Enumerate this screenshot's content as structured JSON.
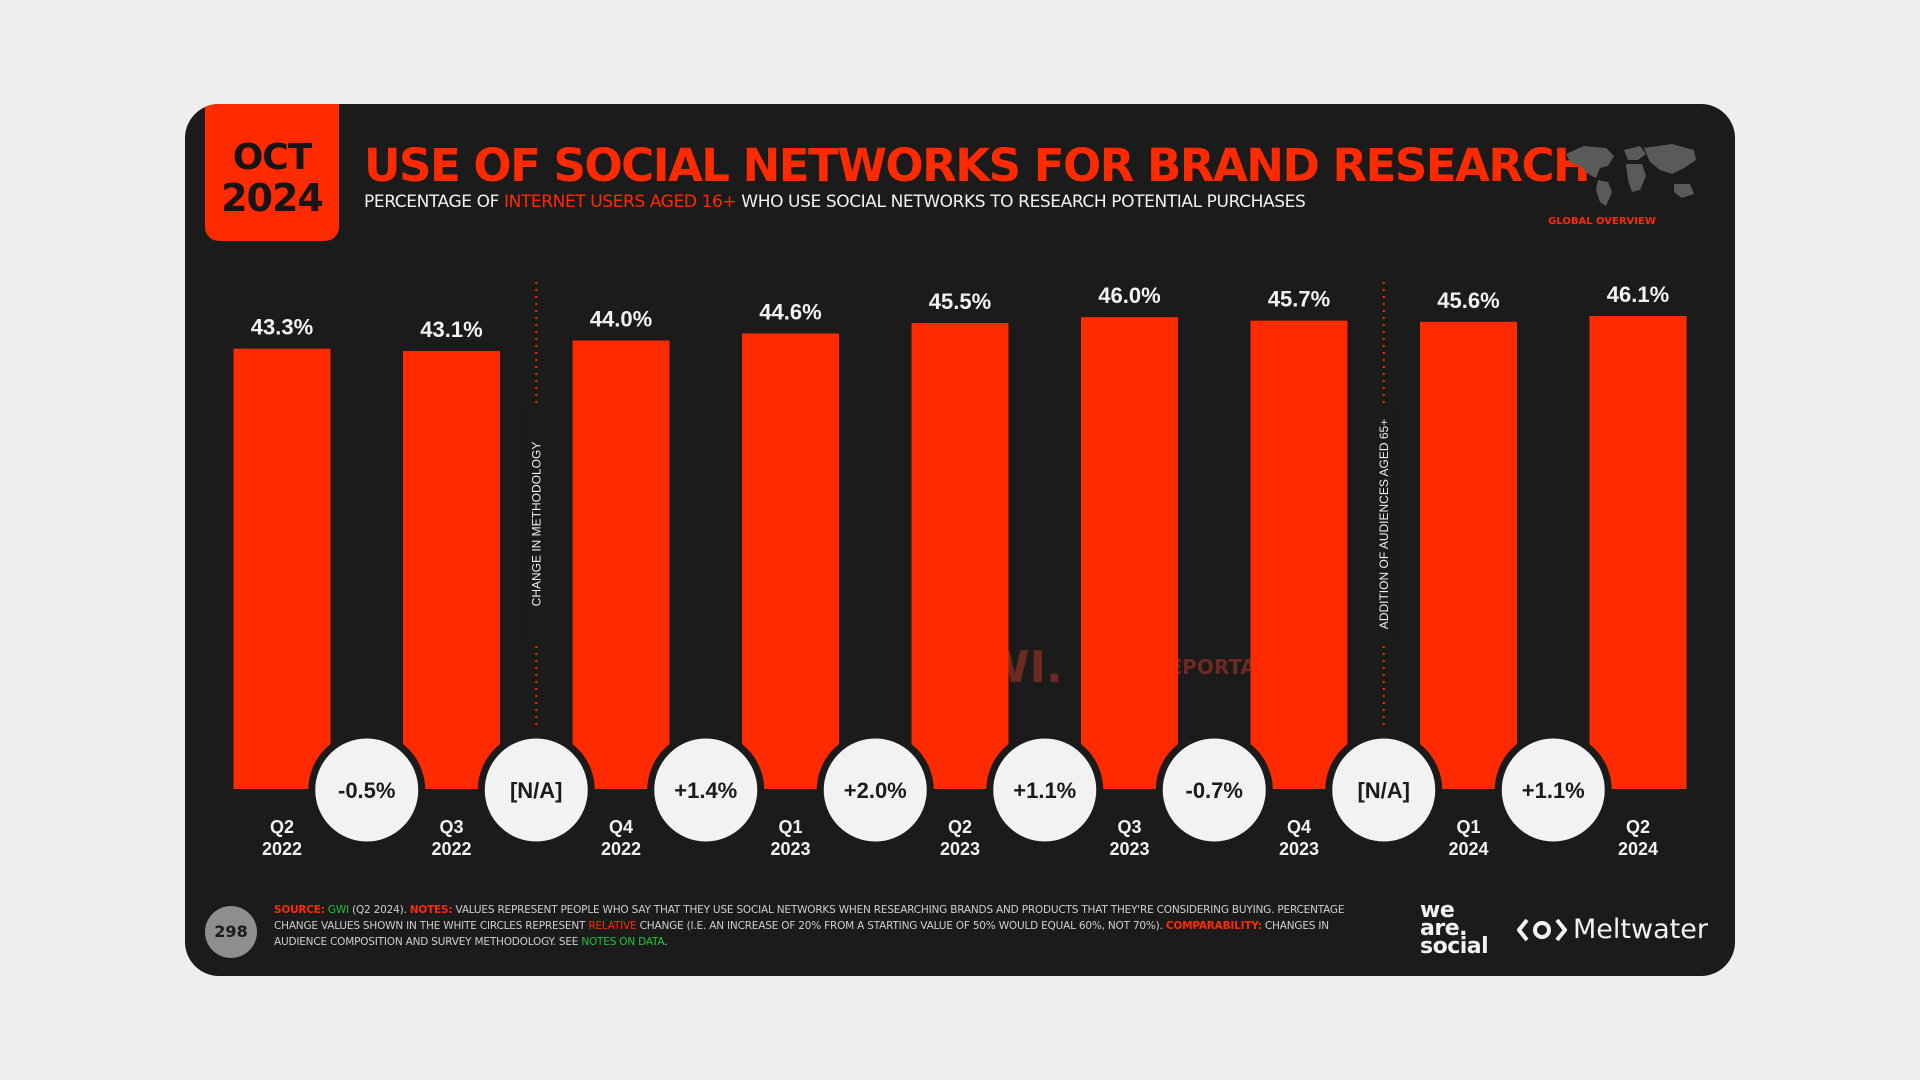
{
  "badge": {
    "month": "OCT",
    "year": "2024"
  },
  "header": {
    "title": "USE OF SOCIAL NETWORKS FOR BRAND RESEARCH",
    "subtitle_pre": "PERCENTAGE OF ",
    "subtitle_highlight": "INTERNET USERS AGED 16+",
    "subtitle_post": " WHO USE SOCIAL NETWORKS TO RESEARCH POTENTIAL PURCHASES",
    "map_caption": "GLOBAL OVERVIEW"
  },
  "chart_data": {
    "type": "bar",
    "categories": [
      [
        "Q2",
        "2022"
      ],
      [
        "Q3",
        "2022"
      ],
      [
        "Q4",
        "2022"
      ],
      [
        "Q1",
        "2023"
      ],
      [
        "Q2",
        "2023"
      ],
      [
        "Q3",
        "2023"
      ],
      [
        "Q4",
        "2023"
      ],
      [
        "Q1",
        "2024"
      ],
      [
        "Q2",
        "2024"
      ]
    ],
    "values": [
      43.3,
      43.1,
      44.0,
      44.6,
      45.5,
      46.0,
      45.7,
      45.6,
      46.1
    ],
    "value_labels": [
      "43.3%",
      "43.1%",
      "44.0%",
      "44.6%",
      "45.5%",
      "46.0%",
      "45.7%",
      "45.6%",
      "46.1%"
    ],
    "changes": [
      "-0.5%",
      "[N/A]",
      "+1.4%",
      "+2.0%",
      "+1.1%",
      "-0.7%",
      "[N/A]",
      "+1.1%"
    ],
    "dividers": [
      {
        "after_index": 1,
        "label": "CHANGE IN METHODOLOGY"
      },
      {
        "after_index": 6,
        "label": "ADDITION OF AUDIENCES AGED 65+"
      }
    ],
    "colors": {
      "bar": "#ff2a00",
      "background": "#1b1b1b",
      "circle": "#f2f2f2"
    }
  },
  "watermark": {
    "gwi": "GWI.",
    "datareportal": "DATAREPORTAL"
  },
  "footer": {
    "page_number": "298",
    "source_label": "SOURCE:",
    "source_name": "GWI",
    "source_rest": " (Q2 2024). ",
    "notes_label": "NOTES:",
    "notes_text": " VALUES REPRESENT PEOPLE WHO SAY THAT THEY USE SOCIAL NETWORKS WHEN RESEARCHING BRANDS AND PRODUCTS THAT THEY'RE CONSIDERING BUYING. PERCENTAGE CHANGE VALUES SHOWN IN THE WHITE CIRCLES REPRESENT ",
    "relative_word": "RELATIVE",
    "notes_text2": " CHANGE (I.E. AN INCREASE OF 20% FROM A STARTING VALUE OF 50% WOULD EQUAL 60%, NOT 70%). ",
    "comparability_label": "COMPARABILITY:",
    "comparability_text": " CHANGES IN AUDIENCE COMPOSITION AND SURVEY METHODOLOGY. SEE ",
    "notes_link": "NOTES ON DATA",
    "notes_end": ".",
    "logo_line1": "we",
    "logo_line2": "are.",
    "logo_line3": "social",
    "meltwater": "Meltwater"
  }
}
